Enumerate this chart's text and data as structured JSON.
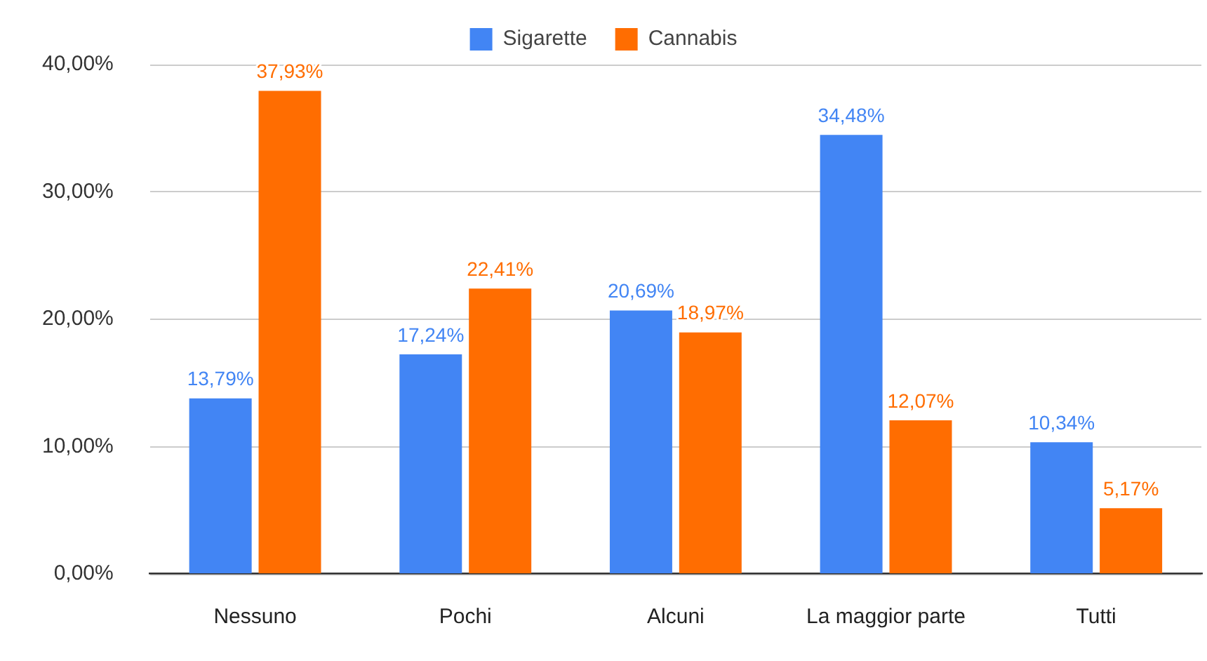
{
  "chart_data": {
    "type": "bar",
    "categories": [
      "Nessuno",
      "Pochi",
      "Alcuni",
      "La maggior parte",
      "Tutti"
    ],
    "series": [
      {
        "name": "Sigarette",
        "color": "#4285f4",
        "values": [
          13.79,
          17.24,
          20.69,
          34.48,
          10.34
        ],
        "value_labels": [
          "13,79%",
          "17,24%",
          "20,69%",
          "34,48%",
          "10,34%"
        ]
      },
      {
        "name": "Cannabis",
        "color": "#ff6d01",
        "values": [
          37.93,
          22.41,
          18.97,
          12.07,
          5.17
        ],
        "value_labels": [
          "37,93%",
          "22,41%",
          "18,97%",
          "12,07%",
          "5,17%"
        ]
      }
    ],
    "ylim": [
      0,
      40
    ],
    "yticks": [
      {
        "value": 0,
        "label": "0,00%"
      },
      {
        "value": 10,
        "label": "10,00%"
      },
      {
        "value": 20,
        "label": "20,00%"
      },
      {
        "value": 30,
        "label": "30,00%"
      },
      {
        "value": 40,
        "label": "40,00%"
      }
    ],
    "grid": "y",
    "legend": "top"
  }
}
